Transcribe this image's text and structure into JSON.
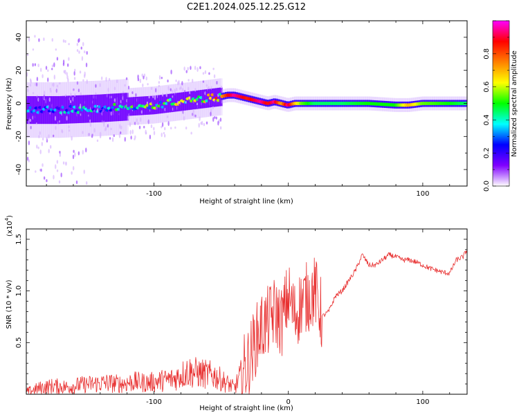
{
  "figure": {
    "title": "C2E1.2024.025.12.25.G12",
    "colors": {
      "axis": "#000000",
      "snr_line": "#e83030",
      "background": "#ffffff"
    }
  },
  "chart_data": [
    {
      "type": "heatmap",
      "xlabel": "Height of straight line (km)",
      "ylabel": "Frequency (Hz)",
      "xlim": [
        -195,
        133
      ],
      "ylim": [
        -50,
        50
      ],
      "xticks": [
        -100,
        0,
        100
      ],
      "xtick_labels": [
        "-100",
        "",
        "100"
      ],
      "yticks": [
        -40,
        -20,
        0,
        20,
        40
      ],
      "ytick_labels": [
        "-40",
        "-20",
        "0",
        "20",
        "40"
      ],
      "grid": false,
      "colorbar": {
        "label": "Normalized spectral amplitude",
        "range": [
          0,
          1
        ],
        "ticks": [
          0.0,
          0.2,
          0.4,
          0.6,
          0.8
        ],
        "tick_labels": [
          "0.0",
          "0.2",
          "0.4",
          "0.6",
          "0.8"
        ],
        "colormap": [
          "#ffffff",
          "#8000ff",
          "#0000ff",
          "#00ffff",
          "#00ff00",
          "#ffff00",
          "#ff8000",
          "#ff0000",
          "#ff00ff"
        ]
      },
      "ridge": {
        "x": [
          -195,
          -170,
          -140,
          -120,
          -100,
          -80,
          -60,
          -50,
          -45,
          -40,
          -35,
          -30,
          -25,
          -20,
          -15,
          -10,
          -5,
          0,
          5,
          10,
          20,
          40,
          60,
          80,
          90,
          100,
          120,
          133
        ],
        "frequency": [
          -4,
          -4,
          -3,
          -2,
          -1,
          1,
          3,
          4,
          5,
          5,
          4,
          3,
          2,
          1,
          0,
          1,
          0,
          -1,
          0,
          0,
          0,
          0,
          0,
          -1,
          -1,
          0,
          0,
          0
        ],
        "amplitude": [
          0.3,
          0.3,
          0.35,
          0.4,
          0.45,
          0.5,
          0.55,
          0.7,
          0.85,
          0.95,
          0.9,
          0.85,
          0.9,
          0.95,
          0.85,
          0.95,
          0.7,
          0.95,
          0.7,
          0.55,
          0.45,
          0.45,
          0.5,
          0.5,
          0.7,
          0.55,
          0.5,
          0.45
        ]
      }
    },
    {
      "type": "line",
      "xlabel": "Height of straight line (km)",
      "ylabel": "SNR (10 * v/v)",
      "y_multiplier": "(x10",
      "y_multiplier_exp": "4",
      "y_multiplier_close": ")",
      "xlim": [
        -195,
        133
      ],
      "ylim": [
        0,
        1.6
      ],
      "xticks": [
        -100,
        0,
        100
      ],
      "xtick_labels": [
        "-100",
        "0",
        "100"
      ],
      "yticks": [
        0.5,
        1.0,
        1.5
      ],
      "ytick_labels": [
        "0.5",
        "1.0",
        "1.5"
      ],
      "grid": false,
      "series": [
        {
          "x": [
            -195,
            -185,
            -175,
            -165,
            -155,
            -145,
            -135,
            -125,
            -115,
            -105,
            -95,
            -85,
            -75,
            -65,
            -55,
            -45,
            -40,
            -35,
            -30,
            -25,
            -20,
            -15,
            -10,
            -5,
            0,
            5,
            10,
            15,
            20,
            25,
            30,
            35,
            40,
            45,
            50,
            55,
            60,
            65,
            70,
            75,
            80,
            85,
            90,
            95,
            100,
            105,
            110,
            115,
            120,
            125,
            130,
            133
          ],
          "y": [
            0.02,
            0.06,
            0.08,
            0.07,
            0.09,
            0.1,
            0.11,
            0.1,
            0.12,
            0.11,
            0.13,
            0.15,
            0.22,
            0.2,
            0.18,
            0.1,
            0.06,
            0.2,
            0.3,
            0.5,
            0.65,
            0.7,
            0.8,
            0.7,
            0.95,
            0.75,
            0.9,
            0.95,
            1.0,
            0.75,
            0.8,
            0.95,
            1.0,
            1.1,
            1.2,
            1.35,
            1.25,
            1.25,
            1.3,
            1.35,
            1.33,
            1.3,
            1.3,
            1.28,
            1.25,
            1.22,
            1.2,
            1.18,
            1.17,
            1.3,
            1.33,
            1.4
          ]
        }
      ]
    }
  ]
}
